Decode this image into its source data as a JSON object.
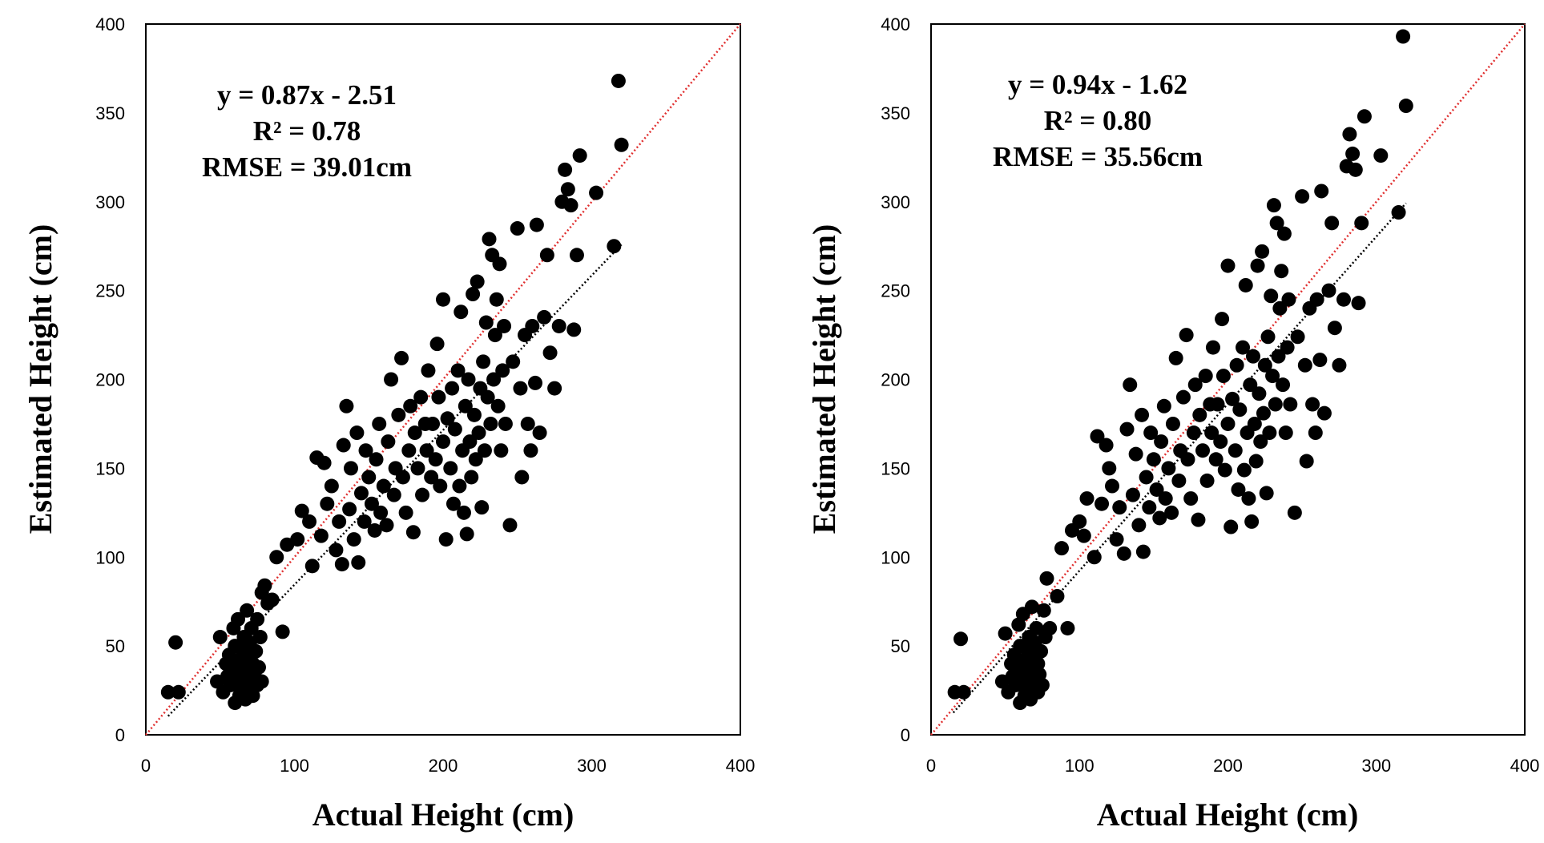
{
  "chart_data": [
    {
      "type": "scatter",
      "xlabel": "Actual Height (cm)",
      "ylabel": "Estimated Height (cm)",
      "xlim": [
        0,
        400
      ],
      "ylim": [
        0,
        400
      ],
      "x_ticks": [
        "0",
        "100",
        "200",
        "300",
        "400"
      ],
      "y_ticks": [
        "0",
        "50",
        "100",
        "150",
        "200",
        "250",
        "300",
        "350",
        "400"
      ],
      "grid": false,
      "legend": "none",
      "annotations": [
        "y = 0.87x - 2.51",
        "R² = 0.78",
        "RMSE = 39.01cm"
      ],
      "reference_line": {
        "style": "dotted",
        "color": "#e03030",
        "slope": 1,
        "intercept": 0,
        "x": [
          0,
          400
        ]
      },
      "trend_line": {
        "style": "dotted",
        "color": "#000000",
        "slope": 0.87,
        "intercept": -2.51,
        "x": [
          15,
          320
        ]
      },
      "marker_color": "#000000",
      "points": [
        [
          15,
          24
        ],
        [
          20,
          52
        ],
        [
          22,
          24
        ],
        [
          48,
          30
        ],
        [
          50,
          55
        ],
        [
          52,
          24
        ],
        [
          54,
          40
        ],
        [
          55,
          33
        ],
        [
          56,
          45
        ],
        [
          57,
          28
        ],
        [
          58,
          36
        ],
        [
          59,
          60
        ],
        [
          60,
          18
        ],
        [
          60,
          50
        ],
        [
          61,
          30
        ],
        [
          62,
          42
        ],
        [
          62,
          65
        ],
        [
          63,
          22
        ],
        [
          64,
          35
        ],
        [
          65,
          48
        ],
        [
          65,
          27
        ],
        [
          66,
          55
        ],
        [
          67,
          38
        ],
        [
          67,
          20
        ],
        [
          68,
          44
        ],
        [
          68,
          70
        ],
        [
          69,
          31
        ],
        [
          70,
          52
        ],
        [
          70,
          26
        ],
        [
          71,
          60
        ],
        [
          72,
          40
        ],
        [
          72,
          22
        ],
        [
          73,
          34
        ],
        [
          74,
          47
        ],
        [
          75,
          28
        ],
        [
          75,
          65
        ],
        [
          76,
          38
        ],
        [
          77,
          55
        ],
        [
          78,
          30
        ],
        [
          78,
          80
        ],
        [
          80,
          84
        ],
        [
          82,
          74
        ],
        [
          85,
          76
        ],
        [
          88,
          100
        ],
        [
          92,
          58
        ],
        [
          95,
          107
        ],
        [
          102,
          110
        ],
        [
          105,
          126
        ],
        [
          110,
          120
        ],
        [
          112,
          95
        ],
        [
          115,
          156
        ],
        [
          118,
          112
        ],
        [
          120,
          153
        ],
        [
          122,
          130
        ],
        [
          125,
          140
        ],
        [
          128,
          104
        ],
        [
          130,
          120
        ],
        [
          132,
          96
        ],
        [
          133,
          163
        ],
        [
          135,
          185
        ],
        [
          137,
          127
        ],
        [
          138,
          150
        ],
        [
          140,
          110
        ],
        [
          142,
          170
        ],
        [
          143,
          97
        ],
        [
          145,
          136
        ],
        [
          147,
          120
        ],
        [
          148,
          160
        ],
        [
          150,
          145
        ],
        [
          152,
          130
        ],
        [
          154,
          115
        ],
        [
          155,
          155
        ],
        [
          157,
          175
        ],
        [
          158,
          125
        ],
        [
          160,
          140
        ],
        [
          162,
          118
        ],
        [
          163,
          165
        ],
        [
          165,
          200
        ],
        [
          167,
          135
        ],
        [
          168,
          150
        ],
        [
          170,
          180
        ],
        [
          172,
          212
        ],
        [
          173,
          145
        ],
        [
          175,
          125
        ],
        [
          177,
          160
        ],
        [
          178,
          185
        ],
        [
          180,
          114
        ],
        [
          181,
          170
        ],
        [
          183,
          150
        ],
        [
          185,
          190
        ],
        [
          186,
          135
        ],
        [
          188,
          175
        ],
        [
          189,
          160
        ],
        [
          190,
          205
        ],
        [
          192,
          145
        ],
        [
          193,
          175
        ],
        [
          195,
          155
        ],
        [
          196,
          220
        ],
        [
          197,
          190
        ],
        [
          198,
          140
        ],
        [
          200,
          165
        ],
        [
          200,
          245
        ],
        [
          202,
          110
        ],
        [
          203,
          178
        ],
        [
          205,
          150
        ],
        [
          206,
          195
        ],
        [
          207,
          130
        ],
        [
          208,
          172
        ],
        [
          210,
          205
        ],
        [
          211,
          140
        ],
        [
          212,
          238
        ],
        [
          213,
          160
        ],
        [
          214,
          125
        ],
        [
          215,
          185
        ],
        [
          216,
          113
        ],
        [
          217,
          200
        ],
        [
          218,
          165
        ],
        [
          219,
          145
        ],
        [
          220,
          248
        ],
        [
          221,
          180
        ],
        [
          222,
          155
        ],
        [
          223,
          255
        ],
        [
          224,
          170
        ],
        [
          225,
          195
        ],
        [
          226,
          128
        ],
        [
          227,
          210
        ],
        [
          228,
          160
        ],
        [
          229,
          232
        ],
        [
          230,
          190
        ],
        [
          231,
          279
        ],
        [
          232,
          175
        ],
        [
          233,
          270
        ],
        [
          234,
          200
        ],
        [
          235,
          225
        ],
        [
          236,
          245
        ],
        [
          237,
          185
        ],
        [
          238,
          265
        ],
        [
          239,
          160
        ],
        [
          240,
          205
        ],
        [
          241,
          230
        ],
        [
          242,
          175
        ],
        [
          245,
          118
        ],
        [
          247,
          210
        ],
        [
          250,
          285
        ],
        [
          252,
          195
        ],
        [
          253,
          145
        ],
        [
          255,
          225
        ],
        [
          257,
          175
        ],
        [
          259,
          160
        ],
        [
          260,
          230
        ],
        [
          262,
          198
        ],
        [
          263,
          287
        ],
        [
          265,
          170
        ],
        [
          268,
          235
        ],
        [
          270,
          270
        ],
        [
          272,
          215
        ],
        [
          275,
          195
        ],
        [
          278,
          230
        ],
        [
          280,
          300
        ],
        [
          282,
          318
        ],
        [
          284,
          307
        ],
        [
          286,
          298
        ],
        [
          288,
          228
        ],
        [
          290,
          270
        ],
        [
          292,
          326
        ],
        [
          303,
          305
        ],
        [
          315,
          275
        ],
        [
          318,
          368
        ],
        [
          320,
          332
        ]
      ]
    },
    {
      "type": "scatter",
      "xlabel": "Actual Height (cm)",
      "ylabel": "Estimated Height (cm)",
      "xlim": [
        0,
        400
      ],
      "ylim": [
        0,
        400
      ],
      "x_ticks": [
        "0",
        "100",
        "200",
        "300",
        "400"
      ],
      "y_ticks": [
        "0",
        "50",
        "100",
        "150",
        "200",
        "250",
        "300",
        "350",
        "400"
      ],
      "grid": false,
      "legend": "none",
      "annotations": [
        "y = 0.94x - 1.62",
        "R² = 0.80",
        "RMSE = 35.56cm"
      ],
      "reference_line": {
        "style": "dotted",
        "color": "#e03030",
        "slope": 1,
        "intercept": 0,
        "x": [
          0,
          400
        ]
      },
      "trend_line": {
        "style": "dotted",
        "color": "#000000",
        "slope": 0.94,
        "intercept": -1.62,
        "x": [
          15,
          320
        ]
      },
      "marker_color": "#000000",
      "points": [
        [
          16,
          24
        ],
        [
          20,
          54
        ],
        [
          22,
          24
        ],
        [
          48,
          30
        ],
        [
          50,
          57
        ],
        [
          52,
          24
        ],
        [
          54,
          40
        ],
        [
          55,
          33
        ],
        [
          56,
          45
        ],
        [
          57,
          28
        ],
        [
          58,
          36
        ],
        [
          59,
          62
        ],
        [
          60,
          18
        ],
        [
          60,
          50
        ],
        [
          61,
          30
        ],
        [
          62,
          42
        ],
        [
          62,
          68
        ],
        [
          63,
          22
        ],
        [
          64,
          35
        ],
        [
          65,
          48
        ],
        [
          65,
          27
        ],
        [
          66,
          55
        ],
        [
          67,
          38
        ],
        [
          67,
          20
        ],
        [
          68,
          44
        ],
        [
          68,
          72
        ],
        [
          69,
          31
        ],
        [
          70,
          52
        ],
        [
          70,
          26
        ],
        [
          71,
          60
        ],
        [
          72,
          40
        ],
        [
          72,
          24
        ],
        [
          73,
          34
        ],
        [
          74,
          47
        ],
        [
          75,
          28
        ],
        [
          76,
          70
        ],
        [
          77,
          55
        ],
        [
          78,
          88
        ],
        [
          80,
          60
        ],
        [
          85,
          78
        ],
        [
          88,
          105
        ],
        [
          92,
          60
        ],
        [
          95,
          115
        ],
        [
          100,
          120
        ],
        [
          103,
          112
        ],
        [
          105,
          133
        ],
        [
          110,
          100
        ],
        [
          112,
          168
        ],
        [
          115,
          130
        ],
        [
          118,
          163
        ],
        [
          120,
          150
        ],
        [
          122,
          140
        ],
        [
          125,
          110
        ],
        [
          127,
          128
        ],
        [
          130,
          102
        ],
        [
          132,
          172
        ],
        [
          134,
          197
        ],
        [
          136,
          135
        ],
        [
          138,
          158
        ],
        [
          140,
          118
        ],
        [
          142,
          180
        ],
        [
          143,
          103
        ],
        [
          145,
          145
        ],
        [
          147,
          128
        ],
        [
          148,
          170
        ],
        [
          150,
          155
        ],
        [
          152,
          138
        ],
        [
          154,
          122
        ],
        [
          155,
          165
        ],
        [
          157,
          185
        ],
        [
          158,
          133
        ],
        [
          160,
          150
        ],
        [
          162,
          125
        ],
        [
          163,
          175
        ],
        [
          165,
          212
        ],
        [
          167,
          143
        ],
        [
          168,
          160
        ],
        [
          170,
          190
        ],
        [
          172,
          225
        ],
        [
          173,
          155
        ],
        [
          175,
          133
        ],
        [
          177,
          170
        ],
        [
          178,
          197
        ],
        [
          180,
          121
        ],
        [
          181,
          180
        ],
        [
          183,
          160
        ],
        [
          185,
          202
        ],
        [
          186,
          143
        ],
        [
          188,
          186
        ],
        [
          189,
          170
        ],
        [
          190,
          218
        ],
        [
          192,
          155
        ],
        [
          193,
          186
        ],
        [
          195,
          165
        ],
        [
          196,
          234
        ],
        [
          197,
          202
        ],
        [
          198,
          149
        ],
        [
          200,
          175
        ],
        [
          200,
          264
        ],
        [
          202,
          117
        ],
        [
          203,
          189
        ],
        [
          205,
          160
        ],
        [
          206,
          208
        ],
        [
          207,
          138
        ],
        [
          208,
          183
        ],
        [
          210,
          218
        ],
        [
          211,
          149
        ],
        [
          212,
          253
        ],
        [
          213,
          170
        ],
        [
          214,
          133
        ],
        [
          215,
          197
        ],
        [
          216,
          120
        ],
        [
          217,
          213
        ],
        [
          218,
          175
        ],
        [
          219,
          154
        ],
        [
          220,
          264
        ],
        [
          221,
          192
        ],
        [
          222,
          165
        ],
        [
          223,
          272
        ],
        [
          224,
          181
        ],
        [
          225,
          208
        ],
        [
          226,
          136
        ],
        [
          227,
          224
        ],
        [
          228,
          170
        ],
        [
          229,
          247
        ],
        [
          230,
          202
        ],
        [
          231,
          298
        ],
        [
          232,
          186
        ],
        [
          233,
          288
        ],
        [
          234,
          213
        ],
        [
          235,
          240
        ],
        [
          236,
          261
        ],
        [
          237,
          197
        ],
        [
          238,
          282
        ],
        [
          239,
          170
        ],
        [
          240,
          218
        ],
        [
          241,
          245
        ],
        [
          242,
          186
        ],
        [
          245,
          125
        ],
        [
          247,
          224
        ],
        [
          250,
          303
        ],
        [
          252,
          208
        ],
        [
          253,
          154
        ],
        [
          255,
          240
        ],
        [
          257,
          186
        ],
        [
          259,
          170
        ],
        [
          260,
          245
        ],
        [
          262,
          211
        ],
        [
          263,
          306
        ],
        [
          265,
          181
        ],
        [
          268,
          250
        ],
        [
          270,
          288
        ],
        [
          272,
          229
        ],
        [
          275,
          208
        ],
        [
          278,
          245
        ],
        [
          280,
          320
        ],
        [
          282,
          338
        ],
        [
          284,
          327
        ],
        [
          286,
          318
        ],
        [
          288,
          243
        ],
        [
          290,
          288
        ],
        [
          292,
          348
        ],
        [
          303,
          326
        ],
        [
          315,
          294
        ],
        [
          318,
          393
        ],
        [
          320,
          354
        ]
      ]
    }
  ]
}
